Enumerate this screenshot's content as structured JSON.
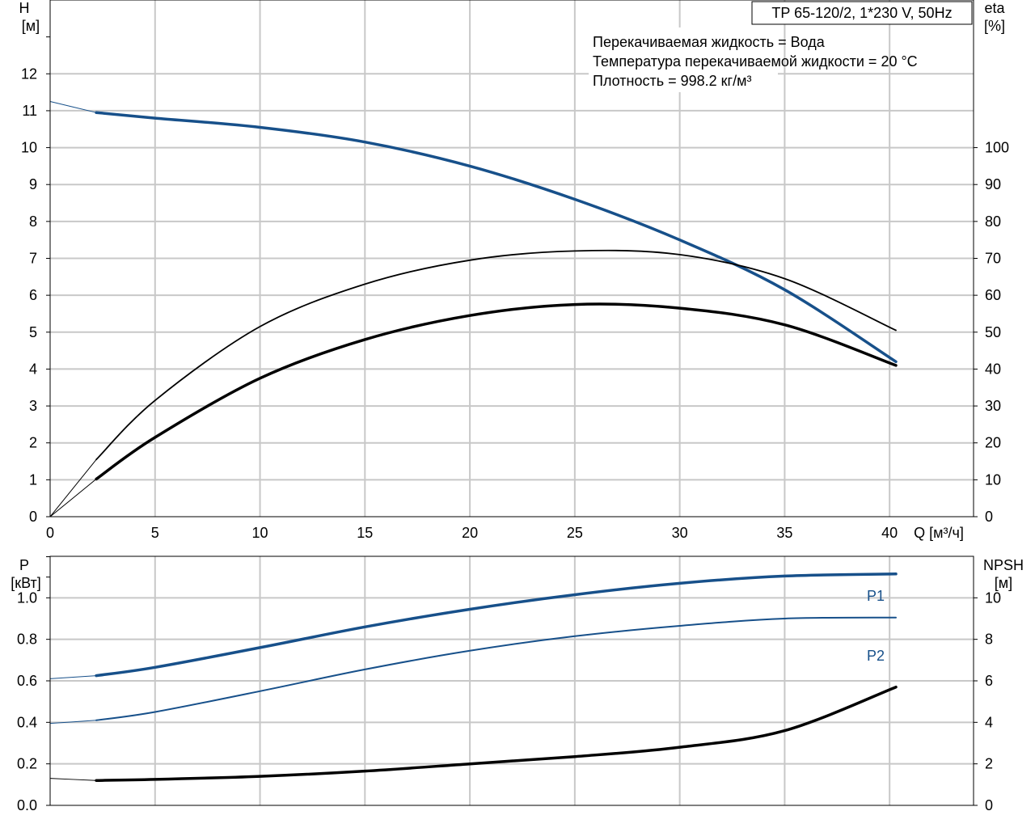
{
  "title_box": "TP 65-120/2, 1*230 V, 50Hz",
  "info": [
    "Перекачиваемая жидкость = Вода",
    "Температура перекачиваемой жидкости = 20 °C",
    "Плотность = 998.2 кг/м³"
  ],
  "colors": {
    "blue": "#17508a",
    "black": "#000000",
    "grid": "#c8c8c8"
  },
  "chart_data": [
    {
      "type": "line",
      "xlabel": "Q [м³/ч]",
      "ylabel_left": [
        "H",
        "[м]"
      ],
      "ylabel_right": [
        "eta",
        "[%]"
      ],
      "xlim": [
        0,
        44
      ],
      "ylim_left": [
        0,
        14
      ],
      "ylim_right": [
        0,
        140
      ],
      "x_ticks": [
        0,
        5,
        10,
        15,
        20,
        25,
        30,
        35,
        40
      ],
      "y_ticks_left": [
        0,
        1,
        2,
        3,
        4,
        5,
        6,
        7,
        8,
        9,
        10,
        11,
        12
      ],
      "y_ticks_right": [
        0,
        10,
        20,
        30,
        40,
        50,
        60,
        70,
        80,
        90,
        100
      ],
      "grid": true,
      "series": [
        {
          "axis": "left",
          "color": "blue",
          "x": [
            2.2,
            5,
            10,
            15,
            20,
            25,
            30,
            35,
            40.3
          ],
          "values": [
            10.95,
            10.8,
            10.55,
            10.15,
            9.5,
            8.6,
            7.5,
            6.15,
            4.2
          ],
          "ext_x": [
            0,
            2.2
          ],
          "ext_values": [
            11.25,
            10.95
          ]
        },
        {
          "axis": "right",
          "color": "black",
          "x": [
            2.2,
            5,
            10,
            15,
            20,
            25,
            30,
            35,
            40.3
          ],
          "values": [
            15.5,
            31.5,
            51.5,
            63,
            69.5,
            72,
            71,
            64.5,
            50.5
          ],
          "ext_x": [
            0,
            2.2
          ],
          "ext_values": [
            0,
            15.5
          ]
        },
        {
          "axis": "right",
          "color": "black",
          "x": [
            2.2,
            5,
            10,
            15,
            20,
            25,
            30,
            35,
            40.3
          ],
          "values": [
            10.2,
            21.5,
            37.5,
            48,
            54.5,
            57.5,
            56.5,
            52,
            41
          ],
          "ext_x": [
            0,
            2.2
          ],
          "ext_values": [
            0,
            10.2
          ]
        }
      ]
    },
    {
      "type": "line",
      "xlabel": "",
      "ylabel_left": [
        "P",
        "[кВт]"
      ],
      "ylabel_right": [
        "NPSH",
        "[м]"
      ],
      "xlim": [
        0,
        44
      ],
      "ylim_left": [
        0,
        1.2
      ],
      "ylim_right": [
        0,
        12
      ],
      "y_ticks_left": [
        "0.0",
        "0.2",
        "0.4",
        "0.6",
        "0.8",
        "1.0"
      ],
      "y_ticks_right": [
        0,
        2,
        4,
        6,
        8,
        10
      ],
      "grid": true,
      "series": [
        {
          "name": "P1",
          "axis": "left",
          "color": "blue",
          "x": [
            2.2,
            5,
            10,
            15,
            20,
            25,
            30,
            35,
            40.3
          ],
          "values": [
            0.625,
            0.665,
            0.76,
            0.86,
            0.945,
            1.015,
            1.07,
            1.105,
            1.115
          ],
          "ext_x": [
            0,
            2.2
          ],
          "ext_values": [
            0.61,
            0.625
          ]
        },
        {
          "name": "P2",
          "axis": "left",
          "color": "blue",
          "x": [
            2.2,
            5,
            10,
            15,
            20,
            25,
            30,
            35,
            40.3
          ],
          "values": [
            0.41,
            0.45,
            0.55,
            0.655,
            0.745,
            0.815,
            0.865,
            0.9,
            0.905
          ],
          "ext_x": [
            0,
            2.2
          ],
          "ext_values": [
            0.395,
            0.41
          ]
        },
        {
          "axis": "right",
          "color": "black",
          "x": [
            2.2,
            5,
            10,
            15,
            20,
            25,
            30,
            35,
            40.3
          ],
          "values": [
            1.2,
            1.25,
            1.4,
            1.65,
            2.0,
            2.35,
            2.8,
            3.6,
            5.7
          ],
          "ext_x": [
            0,
            2.2
          ],
          "ext_values": [
            1.3,
            1.2
          ]
        }
      ]
    }
  ]
}
